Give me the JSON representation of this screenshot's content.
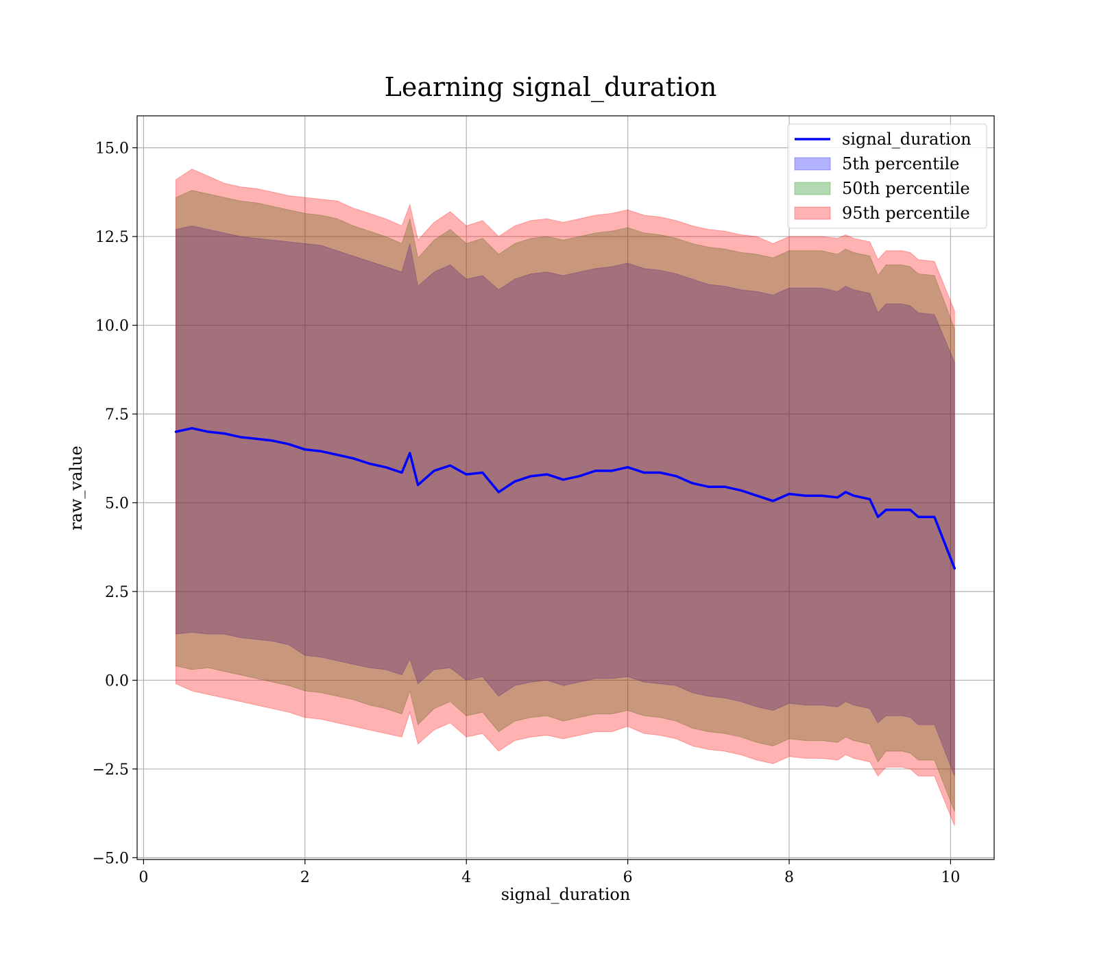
{
  "chart_data": {
    "type": "area",
    "title": "Learning signal_duration",
    "xlabel": "signal_duration",
    "ylabel": "raw_value",
    "xlim": [
      -0.08,
      10.54
    ],
    "ylim": [
      -5.05,
      15.9
    ],
    "x_ticks": [
      0,
      2,
      4,
      6,
      8,
      10
    ],
    "x_tick_labels": [
      "0",
      "2",
      "4",
      "6",
      "8",
      "10"
    ],
    "y_ticks": [
      -5.0,
      -2.5,
      0.0,
      2.5,
      5.0,
      7.5,
      10.0,
      12.5,
      15.0
    ],
    "y_tick_labels": [
      "−5.0",
      "−2.5",
      "0.0",
      "2.5",
      "5.0",
      "7.5",
      "10.0",
      "12.5",
      "15.0"
    ],
    "grid": true,
    "legend_position": "top-right",
    "x": [
      0.4,
      0.6,
      0.8,
      1.0,
      1.2,
      1.4,
      1.6,
      1.8,
      2.0,
      2.2,
      2.4,
      2.6,
      2.8,
      3.0,
      3.2,
      3.3,
      3.4,
      3.6,
      3.8,
      4.0,
      4.2,
      4.4,
      4.6,
      4.8,
      5.0,
      5.2,
      5.4,
      5.6,
      5.8,
      6.0,
      6.2,
      6.4,
      6.6,
      6.8,
      7.0,
      7.2,
      7.4,
      7.6,
      7.8,
      8.0,
      8.2,
      8.4,
      8.6,
      8.7,
      8.8,
      9.0,
      9.1,
      9.2,
      9.4,
      9.5,
      9.6,
      9.8,
      10.05
    ],
    "series": [
      {
        "name": "signal_duration",
        "kind": "line",
        "color": "#0000ff",
        "values": [
          7.0,
          7.1,
          7.0,
          6.95,
          6.85,
          6.8,
          6.75,
          6.65,
          6.5,
          6.45,
          6.35,
          6.25,
          6.1,
          6.0,
          5.85,
          6.4,
          5.5,
          5.9,
          6.05,
          5.8,
          5.85,
          5.3,
          5.6,
          5.75,
          5.8,
          5.65,
          5.75,
          5.9,
          5.9,
          6.0,
          5.85,
          5.85,
          5.75,
          5.55,
          5.45,
          5.45,
          5.35,
          5.2,
          5.05,
          5.25,
          5.2,
          5.2,
          5.15,
          5.3,
          5.2,
          5.1,
          4.6,
          4.8,
          4.8,
          4.8,
          4.6,
          4.6,
          3.15
        ]
      },
      {
        "name": "5th percentile",
        "kind": "band",
        "color": "#0000ff",
        "upper": [
          12.7,
          12.8,
          12.7,
          12.6,
          12.5,
          12.45,
          12.4,
          12.35,
          12.3,
          12.25,
          12.1,
          11.95,
          11.8,
          11.65,
          11.5,
          12.3,
          11.1,
          11.5,
          11.7,
          11.3,
          11.4,
          11.0,
          11.3,
          11.45,
          11.5,
          11.4,
          11.5,
          11.6,
          11.65,
          11.75,
          11.6,
          11.55,
          11.45,
          11.3,
          11.15,
          11.1,
          11.0,
          10.95,
          10.85,
          11.05,
          11.05,
          11.05,
          10.95,
          11.1,
          11.0,
          10.9,
          10.35,
          10.6,
          10.6,
          10.55,
          10.35,
          10.3,
          8.95
        ],
        "lower": [
          1.3,
          1.35,
          1.3,
          1.3,
          1.2,
          1.15,
          1.1,
          1.0,
          0.7,
          0.65,
          0.55,
          0.45,
          0.35,
          0.3,
          0.15,
          0.6,
          -0.1,
          0.3,
          0.35,
          0.0,
          0.1,
          -0.45,
          -0.15,
          -0.05,
          0.0,
          -0.15,
          -0.05,
          0.05,
          0.05,
          0.1,
          -0.05,
          -0.1,
          -0.15,
          -0.35,
          -0.45,
          -0.5,
          -0.6,
          -0.75,
          -0.85,
          -0.65,
          -0.7,
          -0.7,
          -0.75,
          -0.6,
          -0.7,
          -0.8,
          -1.2,
          -1.0,
          -1.0,
          -1.05,
          -1.25,
          -1.25,
          -2.7
        ]
      },
      {
        "name": "50th percentile",
        "kind": "band",
        "color": "#008000",
        "upper": [
          13.6,
          13.8,
          13.7,
          13.6,
          13.5,
          13.45,
          13.35,
          13.25,
          13.15,
          13.1,
          13.0,
          12.8,
          12.65,
          12.5,
          12.3,
          13.0,
          11.9,
          12.4,
          12.7,
          12.3,
          12.45,
          12.0,
          12.3,
          12.45,
          12.5,
          12.4,
          12.5,
          12.6,
          12.65,
          12.75,
          12.6,
          12.55,
          12.45,
          12.3,
          12.2,
          12.15,
          12.05,
          12.0,
          11.9,
          12.1,
          12.1,
          12.1,
          12.0,
          12.15,
          12.05,
          11.95,
          11.4,
          11.7,
          11.7,
          11.65,
          11.45,
          11.4,
          9.9
        ],
        "lower": [
          0.4,
          0.3,
          0.35,
          0.25,
          0.15,
          0.05,
          -0.05,
          -0.15,
          -0.3,
          -0.35,
          -0.45,
          -0.55,
          -0.7,
          -0.8,
          -0.95,
          -0.3,
          -1.25,
          -0.8,
          -0.6,
          -1.0,
          -0.9,
          -1.45,
          -1.15,
          -1.05,
          -1.0,
          -1.15,
          -1.05,
          -0.95,
          -0.95,
          -0.85,
          -1.0,
          -1.05,
          -1.15,
          -1.35,
          -1.45,
          -1.5,
          -1.6,
          -1.75,
          -1.85,
          -1.65,
          -1.7,
          -1.7,
          -1.75,
          -1.6,
          -1.7,
          -1.8,
          -2.3,
          -2.0,
          -2.0,
          -2.05,
          -2.25,
          -2.25,
          -3.7
        ]
      },
      {
        "name": "95th percentile",
        "kind": "band",
        "color": "#ff0000",
        "upper": [
          14.1,
          14.4,
          14.2,
          14.0,
          13.9,
          13.85,
          13.75,
          13.65,
          13.6,
          13.55,
          13.5,
          13.3,
          13.15,
          13.0,
          12.8,
          13.4,
          12.4,
          12.9,
          13.2,
          12.8,
          12.95,
          12.5,
          12.8,
          12.95,
          13.0,
          12.9,
          13.0,
          13.1,
          13.15,
          13.25,
          13.1,
          13.05,
          12.95,
          12.8,
          12.7,
          12.65,
          12.55,
          12.5,
          12.3,
          12.5,
          12.5,
          12.5,
          12.45,
          12.55,
          12.45,
          12.35,
          11.85,
          12.1,
          12.1,
          12.05,
          11.85,
          11.8,
          10.4
        ],
        "lower": [
          -0.1,
          -0.3,
          -0.4,
          -0.5,
          -0.6,
          -0.7,
          -0.8,
          -0.9,
          -1.05,
          -1.1,
          -1.2,
          -1.3,
          -1.4,
          -1.5,
          -1.6,
          -0.9,
          -1.8,
          -1.4,
          -1.2,
          -1.6,
          -1.5,
          -2.0,
          -1.7,
          -1.6,
          -1.55,
          -1.65,
          -1.55,
          -1.45,
          -1.45,
          -1.3,
          -1.5,
          -1.55,
          -1.65,
          -1.85,
          -1.95,
          -2.0,
          -2.1,
          -2.25,
          -2.35,
          -2.15,
          -2.2,
          -2.2,
          -2.25,
          -2.1,
          -2.2,
          -2.3,
          -2.7,
          -2.45,
          -2.45,
          -2.5,
          -2.7,
          -2.7,
          -4.1
        ]
      }
    ]
  }
}
